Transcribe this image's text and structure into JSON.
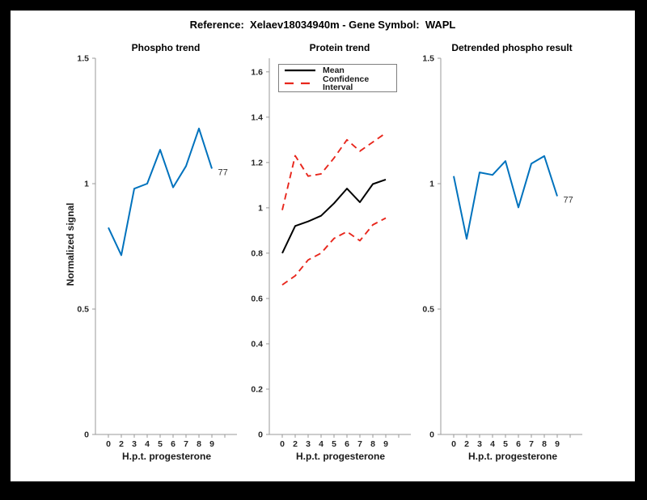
{
  "figure_title": "Reference:  Xelaev18034940m - Gene Symbol:  WAPL",
  "y_axis_label": "Normalized signal",
  "colors": {
    "blue": "#0072bd",
    "red": "#e8261c",
    "black": "#000000",
    "axis": "#999999",
    "tick_text": "#262626"
  },
  "chart_data": [
    {
      "type": "line",
      "title": "Phospho trend",
      "xlabel": "H.p.t. progesterone",
      "ylabel": "Normalized signal",
      "x": [
        0,
        2,
        3,
        4,
        5,
        6,
        7,
        8,
        9
      ],
      "x_tick_labels": [
        "0",
        "2",
        "3",
        "4",
        "5",
        "6",
        "7",
        "8",
        "9",
        ""
      ],
      "y_ticks": [
        0,
        0.5,
        1,
        1.5
      ],
      "y_tick_labels": [
        "0",
        "0.5",
        "1",
        "1.5"
      ],
      "ylim": [
        0,
        1.5
      ],
      "grid": false,
      "series": [
        {
          "name": "phospho-signal",
          "color_key": "blue",
          "style": "solid",
          "width": 2,
          "values": [
            0.825,
            0.715,
            0.98,
            1.0,
            1.135,
            0.985,
            1.07,
            1.22,
            1.06
          ]
        }
      ],
      "end_label": "77"
    },
    {
      "type": "line",
      "title": "Protein trend",
      "xlabel": "H.p.t. progesterone",
      "x": [
        0,
        2,
        3,
        4,
        5,
        6,
        7,
        8,
        9
      ],
      "x_tick_labels": [
        "0",
        "2",
        "3",
        "4",
        "5",
        "6",
        "7",
        "8",
        "9",
        ""
      ],
      "y_ticks": [
        0,
        0.2,
        0.4,
        0.6,
        0.8,
        1.0,
        1.2,
        1.4,
        1.6
      ],
      "y_tick_labels": [
        "0",
        "0.2",
        "0.4",
        "0.6",
        "0.8",
        "1",
        "1.2",
        "1.4",
        "1.6"
      ],
      "ylim": [
        0,
        1.66
      ],
      "grid": false,
      "legend": [
        "Mean",
        "Confidence Interval"
      ],
      "legend_position": "northwest",
      "series": [
        {
          "name": "protein-mean",
          "color_key": "black",
          "style": "solid",
          "width": 2,
          "values": [
            0.8,
            0.92,
            0.94,
            0.965,
            1.02,
            1.085,
            1.025,
            1.105,
            1.125
          ]
        },
        {
          "name": "confidence-interval-upper",
          "color_key": "red",
          "style": "dashed",
          "width": 1.9,
          "values": [
            0.99,
            1.23,
            1.14,
            1.15,
            1.22,
            1.3,
            1.25,
            1.29,
            1.33
          ]
        },
        {
          "name": "confidence-interval-lower",
          "color_key": "red",
          "style": "dashed",
          "width": 1.9,
          "values": [
            0.66,
            0.7,
            0.77,
            0.8,
            0.865,
            0.895,
            0.855,
            0.925,
            0.955
          ]
        }
      ]
    },
    {
      "type": "line",
      "title": "Detrended phospho result",
      "xlabel": "H.p.t. progesterone",
      "x": [
        0,
        2,
        3,
        4,
        5,
        6,
        7,
        8,
        9
      ],
      "x_tick_labels": [
        "0",
        "2",
        "3",
        "4",
        "5",
        "6",
        "7",
        "8",
        "9",
        ""
      ],
      "y_ticks": [
        0,
        0.5,
        1,
        1.5
      ],
      "y_tick_labels": [
        "0",
        "0.5",
        "1",
        "1.5"
      ],
      "ylim": [
        0,
        1.5
      ],
      "grid": false,
      "series": [
        {
          "name": "detrended-signal",
          "color_key": "blue",
          "style": "solid",
          "width": 2,
          "values": [
            1.03,
            0.78,
            1.045,
            1.035,
            1.09,
            0.905,
            1.08,
            1.11,
            0.95
          ]
        }
      ],
      "end_label": "77"
    }
  ]
}
